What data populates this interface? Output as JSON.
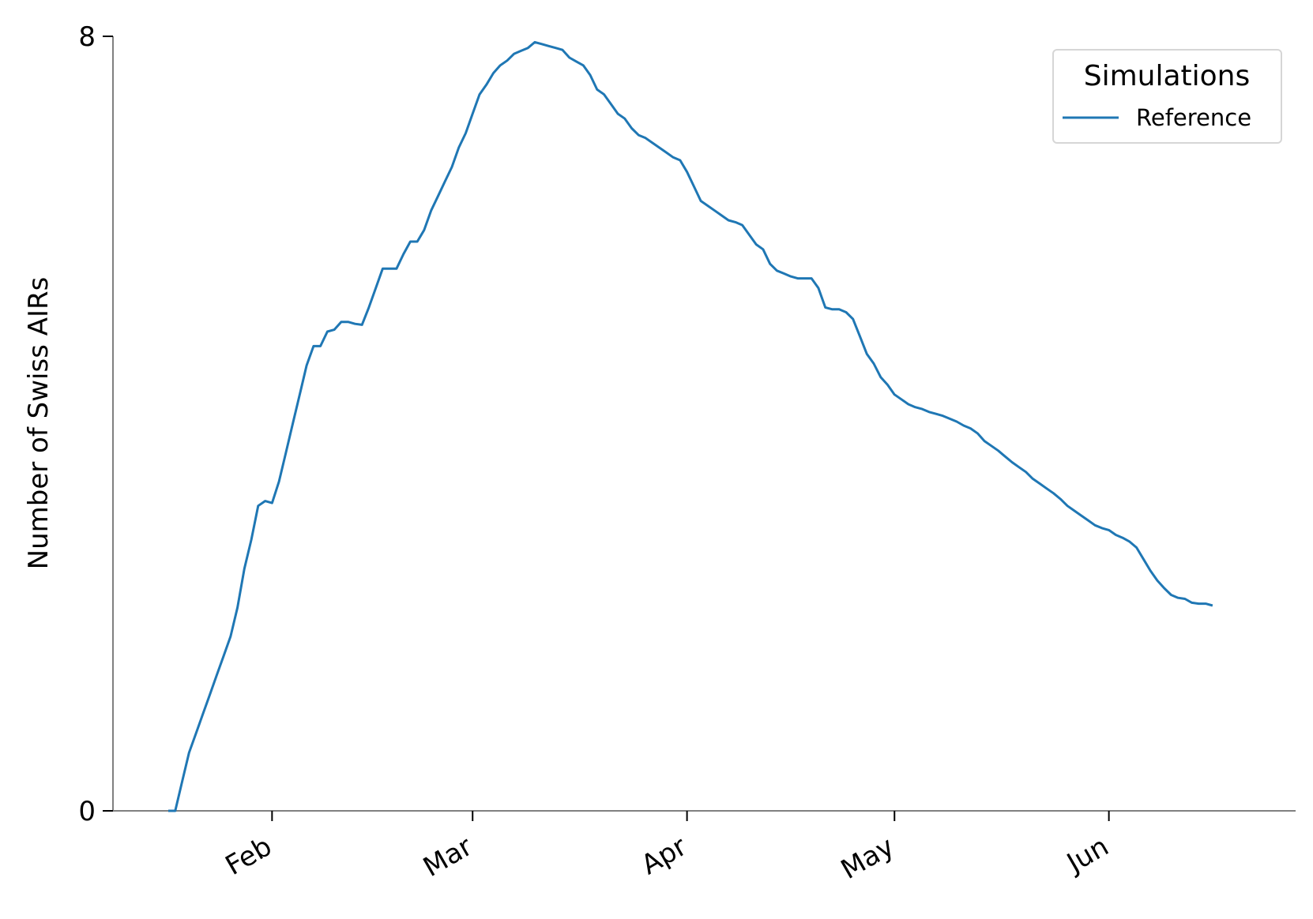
{
  "chart_data": {
    "type": "line",
    "title": "",
    "xlabel": "",
    "ylabel": "Number of Swiss AIRs",
    "ylim": [
      0,
      8
    ],
    "yticks": [
      0,
      8
    ],
    "y_tick_labels": [
      "0",
      "8"
    ],
    "xlim": [
      "2020-01-09",
      "2020-06-28"
    ],
    "x_ticks": [
      {
        "date": "2020-02-01",
        "label": "Feb"
      },
      {
        "date": "2020-03-01",
        "label": "Mar"
      },
      {
        "date": "2020-04-01",
        "label": "Apr"
      },
      {
        "date": "2020-05-01",
        "label": "May"
      },
      {
        "date": "2020-06-01",
        "label": "Jun"
      }
    ],
    "grid": false,
    "legend": {
      "title": "Simulations",
      "position": "top-right"
    },
    "series": [
      {
        "name": "Reference",
        "color": "#1f77b4",
        "points": [
          [
            "2020-01-17",
            0.0
          ],
          [
            "2020-01-18",
            0.0
          ],
          [
            "2020-01-19",
            0.3
          ],
          [
            "2020-01-20",
            0.6
          ],
          [
            "2020-01-21",
            0.8
          ],
          [
            "2020-01-22",
            1.0
          ],
          [
            "2020-01-23",
            1.2
          ],
          [
            "2020-01-24",
            1.4
          ],
          [
            "2020-01-25",
            1.6
          ],
          [
            "2020-01-26",
            1.8
          ],
          [
            "2020-01-27",
            2.1
          ],
          [
            "2020-01-28",
            2.5
          ],
          [
            "2020-01-29",
            2.8
          ],
          [
            "2020-01-30",
            3.15
          ],
          [
            "2020-01-31",
            3.2
          ],
          [
            "2020-02-01",
            3.18
          ],
          [
            "2020-02-02",
            3.4
          ],
          [
            "2020-02-03",
            3.7
          ],
          [
            "2020-02-04",
            4.0
          ],
          [
            "2020-02-05",
            4.3
          ],
          [
            "2020-02-06",
            4.6
          ],
          [
            "2020-02-07",
            4.8
          ],
          [
            "2020-02-08",
            4.8
          ],
          [
            "2020-02-09",
            4.95
          ],
          [
            "2020-02-10",
            4.97
          ],
          [
            "2020-02-11",
            5.05
          ],
          [
            "2020-02-12",
            5.05
          ],
          [
            "2020-02-13",
            5.03
          ],
          [
            "2020-02-14",
            5.02
          ],
          [
            "2020-02-15",
            5.2
          ],
          [
            "2020-02-16",
            5.4
          ],
          [
            "2020-02-17",
            5.6
          ],
          [
            "2020-02-18",
            5.6
          ],
          [
            "2020-02-19",
            5.6
          ],
          [
            "2020-02-20",
            5.75
          ],
          [
            "2020-02-21",
            5.88
          ],
          [
            "2020-02-22",
            5.88
          ],
          [
            "2020-02-23",
            6.0
          ],
          [
            "2020-02-24",
            6.2
          ],
          [
            "2020-02-25",
            6.35
          ],
          [
            "2020-02-26",
            6.5
          ],
          [
            "2020-02-27",
            6.65
          ],
          [
            "2020-02-28",
            6.85
          ],
          [
            "2020-02-29",
            7.0
          ],
          [
            "2020-03-01",
            7.2
          ],
          [
            "2020-03-02",
            7.4
          ],
          [
            "2020-03-03",
            7.5
          ],
          [
            "2020-03-04",
            7.62
          ],
          [
            "2020-03-05",
            7.7
          ],
          [
            "2020-03-06",
            7.75
          ],
          [
            "2020-03-07",
            7.82
          ],
          [
            "2020-03-08",
            7.85
          ],
          [
            "2020-03-09",
            7.88
          ],
          [
            "2020-03-10",
            7.94
          ],
          [
            "2020-03-11",
            7.92
          ],
          [
            "2020-03-12",
            7.9
          ],
          [
            "2020-03-13",
            7.88
          ],
          [
            "2020-03-14",
            7.86
          ],
          [
            "2020-03-15",
            7.78
          ],
          [
            "2020-03-16",
            7.74
          ],
          [
            "2020-03-17",
            7.7
          ],
          [
            "2020-03-18",
            7.6
          ],
          [
            "2020-03-19",
            7.45
          ],
          [
            "2020-03-20",
            7.4
          ],
          [
            "2020-03-21",
            7.3
          ],
          [
            "2020-03-22",
            7.2
          ],
          [
            "2020-03-23",
            7.15
          ],
          [
            "2020-03-24",
            7.05
          ],
          [
            "2020-03-25",
            6.98
          ],
          [
            "2020-03-26",
            6.95
          ],
          [
            "2020-03-27",
            6.9
          ],
          [
            "2020-03-28",
            6.85
          ],
          [
            "2020-03-29",
            6.8
          ],
          [
            "2020-03-30",
            6.75
          ],
          [
            "2020-03-31",
            6.72
          ],
          [
            "2020-04-01",
            6.6
          ],
          [
            "2020-04-02",
            6.45
          ],
          [
            "2020-04-03",
            6.3
          ],
          [
            "2020-04-04",
            6.25
          ],
          [
            "2020-04-05",
            6.2
          ],
          [
            "2020-04-06",
            6.15
          ],
          [
            "2020-04-07",
            6.1
          ],
          [
            "2020-04-08",
            6.08
          ],
          [
            "2020-04-09",
            6.05
          ],
          [
            "2020-04-10",
            5.95
          ],
          [
            "2020-04-11",
            5.85
          ],
          [
            "2020-04-12",
            5.8
          ],
          [
            "2020-04-13",
            5.65
          ],
          [
            "2020-04-14",
            5.58
          ],
          [
            "2020-04-15",
            5.55
          ],
          [
            "2020-04-16",
            5.52
          ],
          [
            "2020-04-17",
            5.5
          ],
          [
            "2020-04-18",
            5.5
          ],
          [
            "2020-04-19",
            5.5
          ],
          [
            "2020-04-20",
            5.4
          ],
          [
            "2020-04-21",
            5.2
          ],
          [
            "2020-04-22",
            5.18
          ],
          [
            "2020-04-23",
            5.18
          ],
          [
            "2020-04-24",
            5.15
          ],
          [
            "2020-04-25",
            5.08
          ],
          [
            "2020-04-26",
            4.9
          ],
          [
            "2020-04-27",
            4.72
          ],
          [
            "2020-04-28",
            4.62
          ],
          [
            "2020-04-29",
            4.48
          ],
          [
            "2020-04-30",
            4.4
          ],
          [
            "2020-05-01",
            4.3
          ],
          [
            "2020-05-02",
            4.25
          ],
          [
            "2020-05-03",
            4.2
          ],
          [
            "2020-05-04",
            4.17
          ],
          [
            "2020-05-05",
            4.15
          ],
          [
            "2020-05-06",
            4.12
          ],
          [
            "2020-05-07",
            4.1
          ],
          [
            "2020-05-08",
            4.08
          ],
          [
            "2020-05-09",
            4.05
          ],
          [
            "2020-05-10",
            4.02
          ],
          [
            "2020-05-11",
            3.98
          ],
          [
            "2020-05-12",
            3.95
          ],
          [
            "2020-05-13",
            3.9
          ],
          [
            "2020-05-14",
            3.82
          ],
          [
            "2020-05-15",
            3.77
          ],
          [
            "2020-05-16",
            3.72
          ],
          [
            "2020-05-17",
            3.66
          ],
          [
            "2020-05-18",
            3.6
          ],
          [
            "2020-05-19",
            3.55
          ],
          [
            "2020-05-20",
            3.5
          ],
          [
            "2020-05-21",
            3.43
          ],
          [
            "2020-05-22",
            3.38
          ],
          [
            "2020-05-23",
            3.33
          ],
          [
            "2020-05-24",
            3.28
          ],
          [
            "2020-05-25",
            3.22
          ],
          [
            "2020-05-26",
            3.15
          ],
          [
            "2020-05-27",
            3.1
          ],
          [
            "2020-05-28",
            3.05
          ],
          [
            "2020-05-29",
            3.0
          ],
          [
            "2020-05-30",
            2.95
          ],
          [
            "2020-05-31",
            2.92
          ],
          [
            "2020-06-01",
            2.9
          ],
          [
            "2020-06-02",
            2.85
          ],
          [
            "2020-06-03",
            2.82
          ],
          [
            "2020-06-04",
            2.78
          ],
          [
            "2020-06-05",
            2.72
          ],
          [
            "2020-06-06",
            2.6
          ],
          [
            "2020-06-07",
            2.48
          ],
          [
            "2020-06-08",
            2.38
          ],
          [
            "2020-06-09",
            2.3
          ],
          [
            "2020-06-10",
            2.23
          ],
          [
            "2020-06-11",
            2.2
          ],
          [
            "2020-06-12",
            2.19
          ],
          [
            "2020-06-13",
            2.15
          ],
          [
            "2020-06-14",
            2.14
          ],
          [
            "2020-06-15",
            2.14
          ],
          [
            "2020-06-16",
            2.12
          ]
        ]
      }
    ]
  }
}
